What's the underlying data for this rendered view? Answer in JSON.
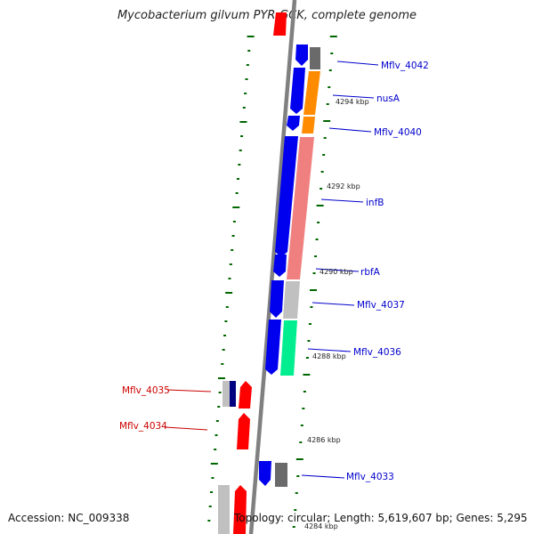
{
  "title": "Mycobacterium gilvum PYR-GCK, complete genome",
  "footer": {
    "accession": "Accession: NC_009338",
    "topology": "Topology: circular; Length: 5,619,607 bp; Genes: 5,295"
  },
  "colors": {
    "forward": "#0000ee",
    "reverse": "#ff0000",
    "label_forward": "#0000cc",
    "label_reverse": "#cc0000",
    "tick": "#006600",
    "backbone": "#808080"
  },
  "kbp_labels": [
    "4294 kbp",
    "4292 kbp",
    "4290 kbp",
    "4288 kbp",
    "4286 kbp",
    "4284 kbp"
  ],
  "gene_labels": [
    {
      "name": "Mflv_4042",
      "strand": "forward"
    },
    {
      "name": "nusA",
      "strand": "forward"
    },
    {
      "name": "Mflv_4040",
      "strand": "forward"
    },
    {
      "name": "infB",
      "strand": "forward"
    },
    {
      "name": "rbfA",
      "strand": "forward"
    },
    {
      "name": "Mflv_4037",
      "strand": "forward"
    },
    {
      "name": "Mflv_4036",
      "strand": "forward"
    },
    {
      "name": "Mflv_4035",
      "strand": "reverse"
    },
    {
      "name": "Mflv_4034",
      "strand": "reverse"
    },
    {
      "name": "Mflv_4033",
      "strand": "forward"
    }
  ],
  "tracks": {
    "forward_cds": "blue",
    "reverse_cds": "red",
    "cog_categories": [
      "gray",
      "orange",
      "pink",
      "silver",
      "aquamarine",
      "navy"
    ]
  }
}
